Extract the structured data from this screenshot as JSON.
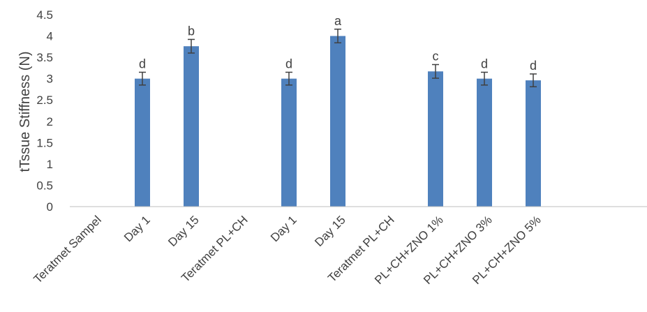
{
  "chart_data": {
    "type": "bar",
    "title": "",
    "xlabel": "",
    "ylabel": "tTssue Stiffness (N)",
    "ylim": [
      0,
      4.5
    ],
    "yticks": [
      "0",
      "0.5",
      "1",
      "1.5",
      "2",
      "2.5",
      "3",
      "3.5",
      "4",
      "4.5"
    ],
    "grid": false,
    "legend": "none",
    "bar_color": "#4f81bd",
    "error_bar_color": "#404040",
    "axis_color": "#bfbfbf",
    "categories": [
      "Teratmet Sampel",
      "Day 1",
      "Day 15",
      "Teratmet PL+CH",
      "Day 1",
      "Day 15",
      "Teratmet PL+CH",
      "PL+CH+ZNO 1%",
      "PL+CH+ZNO 3%",
      "PL+CH+ZNO 5%"
    ],
    "values": [
      null,
      3.0,
      3.76,
      null,
      3.0,
      4.0,
      null,
      3.17,
      3.0,
      2.96
    ],
    "errors": [
      null,
      0.15,
      0.16,
      null,
      0.15,
      0.16,
      null,
      0.16,
      0.15,
      0.15
    ],
    "labels": [
      "",
      "d",
      "b",
      "",
      "d",
      "a",
      "",
      "c",
      "d",
      "d"
    ]
  }
}
